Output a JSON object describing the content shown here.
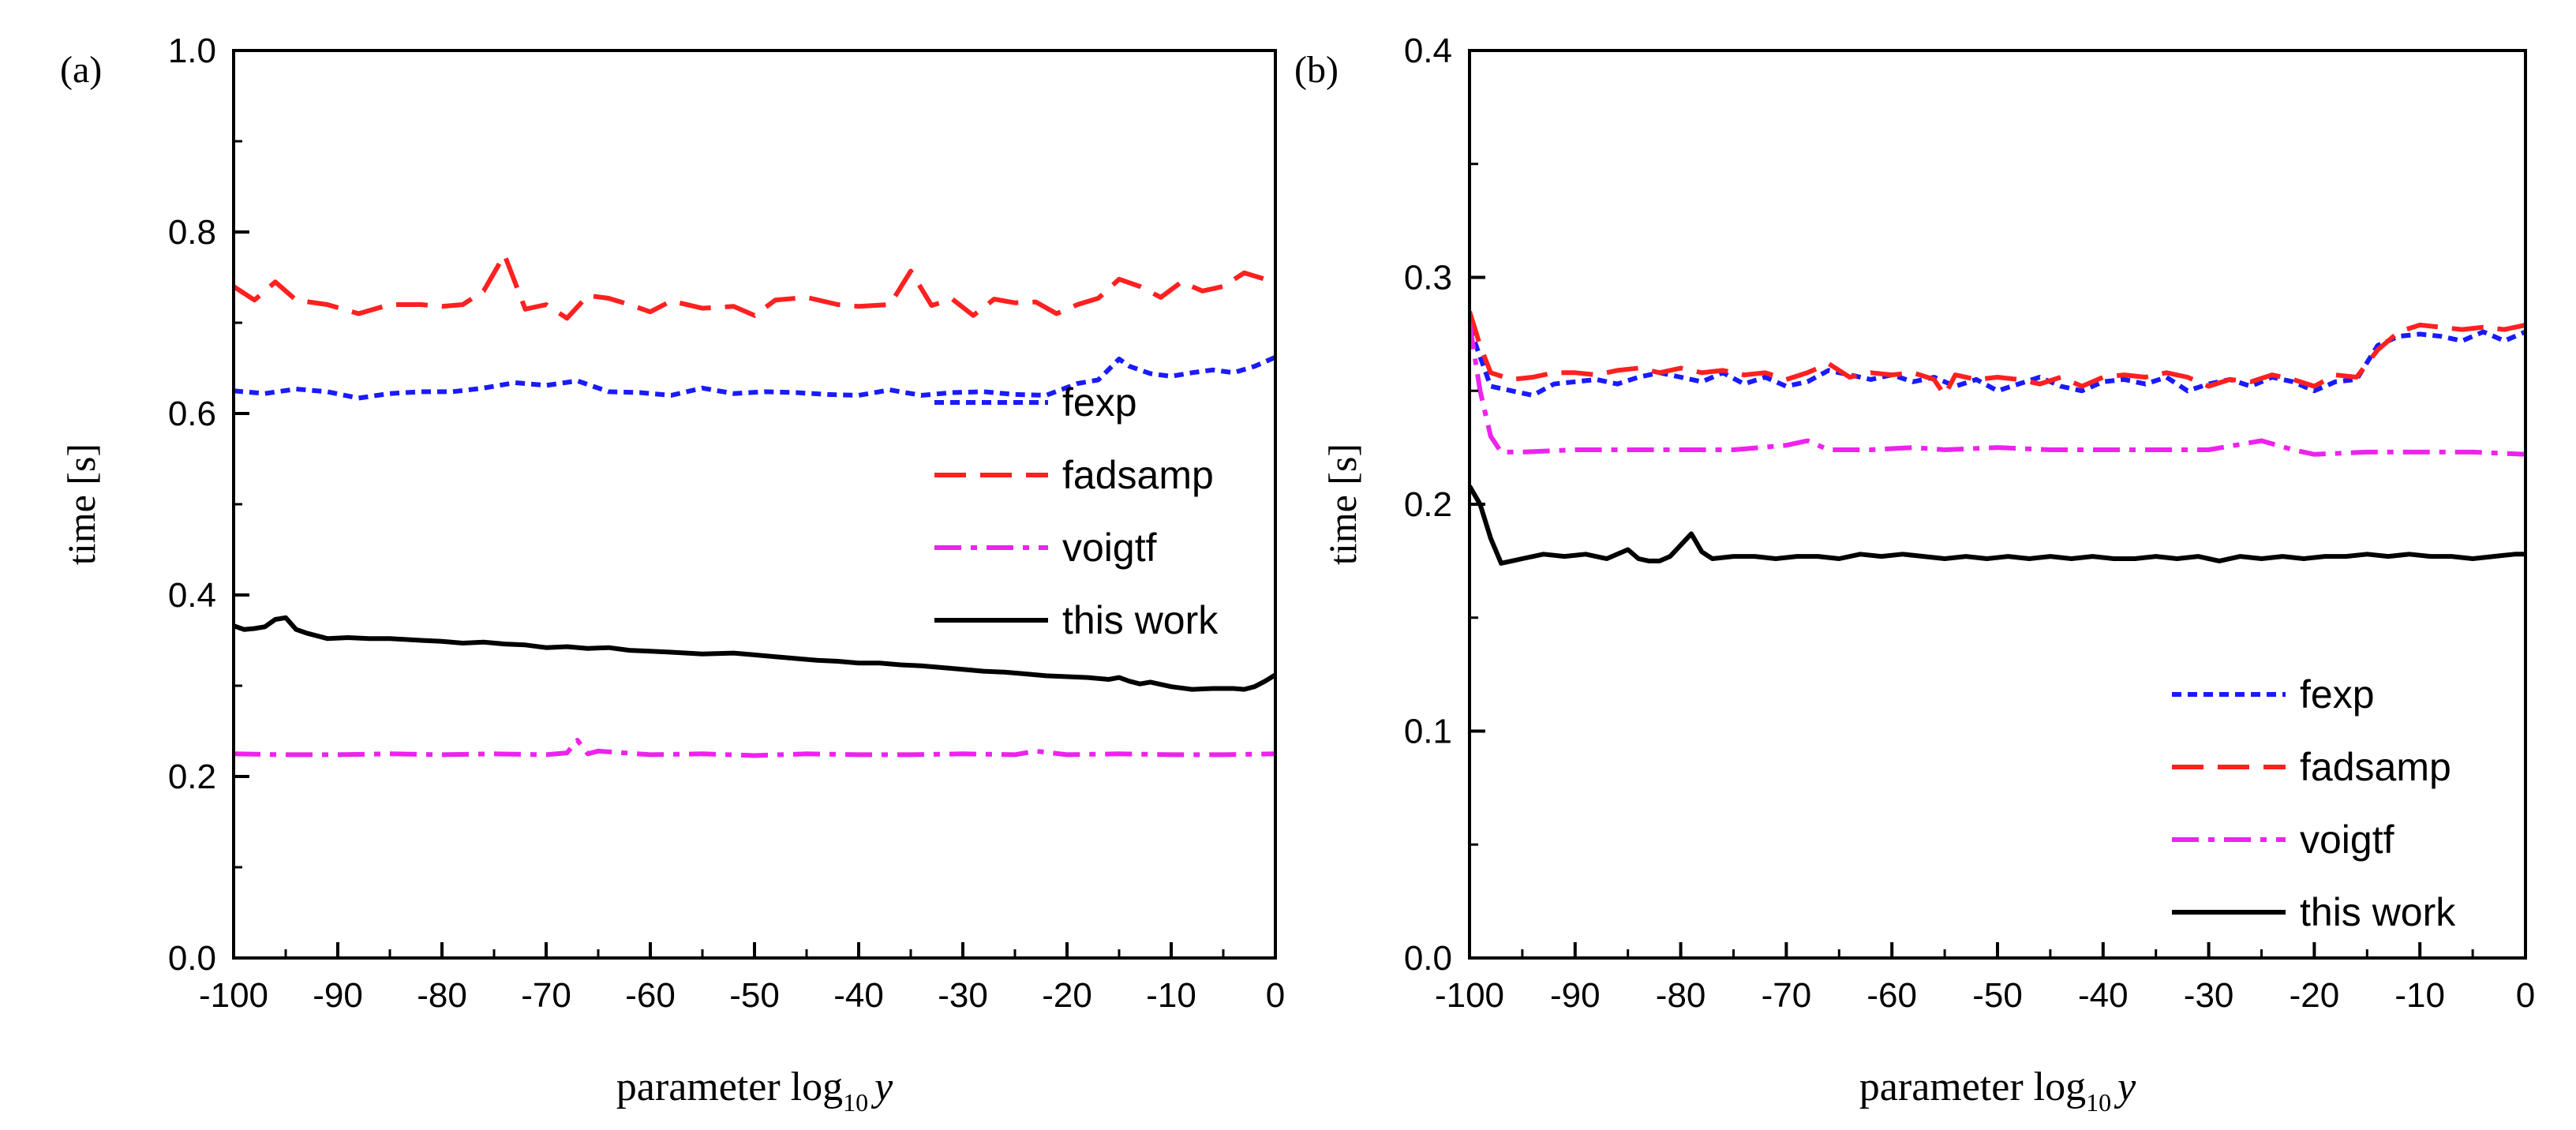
{
  "chart_data": [
    {
      "type": "line",
      "panel_label": "(a)",
      "ylabel": "time [s]",
      "xlabel": {
        "main": "parameter log",
        "sub": "10",
        "var": "y"
      },
      "xlim": [
        -100,
        0
      ],
      "ylim": [
        0,
        1.0
      ],
      "xticks": [
        -100,
        -90,
        -80,
        -70,
        -60,
        -50,
        -40,
        -30,
        -20,
        -10,
        0
      ],
      "xtick_labels": [
        "-100",
        "-90",
        "-80",
        "-70",
        "-60",
        "-50",
        "-40",
        "-30",
        "-20",
        "-10",
        "0"
      ],
      "yticks": [
        0,
        0.2,
        0.4,
        0.6,
        0.8,
        1.0
      ],
      "ytick_labels": [
        "0.0",
        "0.2",
        "0.4",
        "0.6",
        "0.8",
        "1.0"
      ],
      "legend_position": "right-middle",
      "series": [
        {
          "name": "fexp",
          "color": "#1a1aff",
          "dash": "dotted",
          "x": [
            -100,
            -97,
            -94,
            -91,
            -88,
            -85,
            -82,
            -79,
            -76,
            -73,
            -70,
            -67,
            -64,
            -61,
            -58,
            -55,
            -52,
            -49,
            -46,
            -43,
            -40,
            -37,
            -34,
            -31,
            -28,
            -25,
            -22,
            -19,
            -17,
            -15,
            -14,
            -12,
            -10,
            -8,
            -6,
            -4,
            -2,
            0
          ],
          "y": [
            0.625,
            0.622,
            0.627,
            0.624,
            0.617,
            0.622,
            0.624,
            0.624,
            0.628,
            0.634,
            0.631,
            0.636,
            0.624,
            0.623,
            0.62,
            0.628,
            0.622,
            0.624,
            0.623,
            0.621,
            0.62,
            0.626,
            0.62,
            0.623,
            0.624,
            0.621,
            0.62,
            0.633,
            0.637,
            0.66,
            0.652,
            0.644,
            0.641,
            0.645,
            0.648,
            0.645,
            0.652,
            0.662
          ]
        },
        {
          "name": "fadsamp",
          "color": "#ff2020",
          "dash": "dashed",
          "x": [
            -100,
            -98,
            -96,
            -94,
            -91,
            -88,
            -85,
            -82,
            -80,
            -78,
            -76,
            -74,
            -72,
            -70,
            -68,
            -66,
            -64,
            -62,
            -60,
            -58,
            -55,
            -52,
            -50,
            -48,
            -45,
            -42,
            -40,
            -37,
            -35,
            -33,
            -31,
            -29,
            -27,
            -25,
            -23,
            -21,
            -19,
            -17,
            -15,
            -13,
            -11,
            -9,
            -7,
            -5,
            -3,
            -1,
            0
          ],
          "y": [
            0.74,
            0.725,
            0.745,
            0.725,
            0.72,
            0.71,
            0.72,
            0.72,
            0.718,
            0.72,
            0.735,
            0.775,
            0.715,
            0.72,
            0.705,
            0.73,
            0.727,
            0.72,
            0.712,
            0.724,
            0.716,
            0.718,
            0.708,
            0.725,
            0.728,
            0.72,
            0.718,
            0.72,
            0.757,
            0.719,
            0.726,
            0.708,
            0.726,
            0.722,
            0.723,
            0.71,
            0.72,
            0.727,
            0.748,
            0.74,
            0.728,
            0.745,
            0.735,
            0.74,
            0.755,
            0.748,
            0.745
          ]
        },
        {
          "name": "voigtf",
          "color": "#ee22ee",
          "dash": "dashdot",
          "x": [
            -100,
            -95,
            -90,
            -85,
            -80,
            -75,
            -70,
            -68,
            -67,
            -66,
            -65,
            -60,
            -55,
            -50,
            -45,
            -40,
            -35,
            -30,
            -25,
            -23,
            -20,
            -15,
            -10,
            -5,
            0
          ],
          "y": [
            0.225,
            0.224,
            0.224,
            0.225,
            0.224,
            0.225,
            0.224,
            0.226,
            0.24,
            0.225,
            0.228,
            0.224,
            0.225,
            0.223,
            0.225,
            0.224,
            0.224,
            0.225,
            0.224,
            0.228,
            0.224,
            0.225,
            0.224,
            0.224,
            0.225
          ]
        },
        {
          "name": "this work",
          "color": "#000000",
          "dash": "solid",
          "x": [
            -100,
            -99,
            -98,
            -97,
            -96,
            -95,
            -94,
            -93,
            -91,
            -89,
            -87,
            -85,
            -82,
            -80,
            -78,
            -76,
            -74,
            -72,
            -70,
            -68,
            -66,
            -64,
            -62,
            -60,
            -58,
            -55,
            -52,
            -50,
            -48,
            -46,
            -44,
            -42,
            -40,
            -38,
            -36,
            -34,
            -32,
            -30,
            -28,
            -26,
            -24,
            -22,
            -20,
            -18,
            -16,
            -15,
            -14,
            -13,
            -12,
            -10,
            -8,
            -6,
            -4,
            -3,
            -2,
            -1,
            0
          ],
          "y": [
            0.366,
            0.362,
            0.363,
            0.365,
            0.373,
            0.375,
            0.362,
            0.358,
            0.352,
            0.353,
            0.352,
            0.352,
            0.35,
            0.349,
            0.347,
            0.348,
            0.346,
            0.345,
            0.342,
            0.343,
            0.341,
            0.342,
            0.339,
            0.338,
            0.337,
            0.335,
            0.336,
            0.334,
            0.332,
            0.33,
            0.328,
            0.327,
            0.325,
            0.325,
            0.323,
            0.322,
            0.32,
            0.318,
            0.316,
            0.315,
            0.313,
            0.311,
            0.31,
            0.309,
            0.307,
            0.309,
            0.305,
            0.302,
            0.304,
            0.299,
            0.296,
            0.297,
            0.297,
            0.296,
            0.299,
            0.305,
            0.312
          ]
        }
      ]
    },
    {
      "type": "line",
      "panel_label": "(b)",
      "ylabel": "time [s]",
      "xlabel": {
        "main": "parameter log",
        "sub": "10",
        "var": "y"
      },
      "xlim": [
        -100,
        0
      ],
      "ylim": [
        0,
        0.4
      ],
      "xticks": [
        -100,
        -90,
        -80,
        -70,
        -60,
        -50,
        -40,
        -30,
        -20,
        -10,
        0
      ],
      "xtick_labels": [
        "-100",
        "-90",
        "-80",
        "-70",
        "-60",
        "-50",
        "-40",
        "-30",
        "-20",
        "-10",
        "0"
      ],
      "yticks": [
        0,
        0.1,
        0.2,
        0.3,
        0.4
      ],
      "ytick_labels": [
        "0.0",
        "0.1",
        "0.2",
        "0.3",
        "0.4"
      ],
      "legend_position": "bottom-right",
      "series": [
        {
          "name": "fexp",
          "color": "#1a1aff",
          "dash": "dotted",
          "x": [
            -100,
            -99,
            -98,
            -96,
            -94,
            -92,
            -90,
            -88,
            -86,
            -84,
            -82,
            -80,
            -78,
            -76,
            -74,
            -72,
            -70,
            -68,
            -66,
            -64,
            -62,
            -60,
            -58,
            -56,
            -54,
            -52,
            -50,
            -48,
            -46,
            -44,
            -42,
            -40,
            -38,
            -36,
            -34,
            -32,
            -30,
            -28,
            -26,
            -24,
            -22,
            -20,
            -18,
            -16,
            -14,
            -12,
            -10,
            -8,
            -6,
            -4,
            -2,
            0
          ],
          "y": [
            0.278,
            0.265,
            0.252,
            0.25,
            0.248,
            0.253,
            0.254,
            0.255,
            0.253,
            0.256,
            0.258,
            0.256,
            0.254,
            0.258,
            0.253,
            0.256,
            0.252,
            0.254,
            0.259,
            0.257,
            0.255,
            0.257,
            0.254,
            0.256,
            0.252,
            0.255,
            0.25,
            0.253,
            0.256,
            0.252,
            0.25,
            0.254,
            0.255,
            0.253,
            0.256,
            0.25,
            0.253,
            0.255,
            0.252,
            0.256,
            0.254,
            0.25,
            0.254,
            0.255,
            0.27,
            0.274,
            0.275,
            0.274,
            0.272,
            0.276,
            0.272,
            0.276
          ]
        },
        {
          "name": "fadsamp",
          "color": "#ff2020",
          "dash": "dashed",
          "x": [
            -100,
            -99,
            -98,
            -96,
            -94,
            -92,
            -90,
            -88,
            -86,
            -84,
            -82,
            -80,
            -78,
            -76,
            -74,
            -72,
            -70,
            -68,
            -66,
            -64,
            -62,
            -60,
            -58,
            -56,
            -55,
            -54,
            -52,
            -50,
            -48,
            -46,
            -44,
            -42,
            -40,
            -38,
            -36,
            -34,
            -32,
            -30,
            -28,
            -26,
            -24,
            -22,
            -20,
            -18,
            -16,
            -14,
            -12,
            -10,
            -8,
            -6,
            -4,
            -2,
            0
          ],
          "y": [
            0.285,
            0.27,
            0.258,
            0.255,
            0.256,
            0.258,
            0.258,
            0.257,
            0.259,
            0.26,
            0.258,
            0.26,
            0.258,
            0.259,
            0.257,
            0.258,
            0.255,
            0.258,
            0.262,
            0.256,
            0.258,
            0.257,
            0.258,
            0.255,
            0.248,
            0.257,
            0.255,
            0.256,
            0.255,
            0.253,
            0.256,
            0.252,
            0.256,
            0.257,
            0.256,
            0.258,
            0.256,
            0.252,
            0.255,
            0.254,
            0.257,
            0.255,
            0.252,
            0.257,
            0.256,
            0.268,
            0.276,
            0.279,
            0.278,
            0.277,
            0.278,
            0.277,
            0.279
          ]
        },
        {
          "name": "voigtf",
          "color": "#ee22ee",
          "dash": "dashdot",
          "x": [
            -100,
            -99,
            -98,
            -97,
            -95,
            -90,
            -85,
            -80,
            -75,
            -70,
            -68,
            -66,
            -62,
            -58,
            -55,
            -50,
            -45,
            -40,
            -35,
            -30,
            -25,
            -22,
            -20,
            -15,
            -10,
            -5,
            0
          ],
          "y": [
            0.28,
            0.25,
            0.23,
            0.223,
            0.223,
            0.224,
            0.224,
            0.224,
            0.224,
            0.226,
            0.228,
            0.224,
            0.224,
            0.225,
            0.224,
            0.225,
            0.224,
            0.224,
            0.224,
            0.224,
            0.228,
            0.224,
            0.222,
            0.223,
            0.223,
            0.223,
            0.222
          ]
        },
        {
          "name": "this work",
          "color": "#000000",
          "dash": "solid",
          "x": [
            -100,
            -99,
            -98,
            -97,
            -96,
            -95,
            -93,
            -91,
            -89,
            -87,
            -85,
            -84,
            -83,
            -82,
            -81,
            -80,
            -79,
            -78,
            -77,
            -75,
            -73,
            -71,
            -69,
            -67,
            -65,
            -63,
            -61,
            -59,
            -57,
            -55,
            -53,
            -51,
            -49,
            -47,
            -45,
            -43,
            -41,
            -39,
            -37,
            -35,
            -33,
            -31,
            -29,
            -27,
            -25,
            -23,
            -21,
            -19,
            -17,
            -15,
            -13,
            -11,
            -9,
            -7,
            -5,
            -3,
            -1,
            0
          ],
          "y": [
            0.208,
            0.2,
            0.185,
            0.174,
            0.175,
            0.176,
            0.178,
            0.177,
            0.178,
            0.176,
            0.18,
            0.176,
            0.175,
            0.175,
            0.177,
            0.182,
            0.187,
            0.179,
            0.176,
            0.177,
            0.177,
            0.176,
            0.177,
            0.177,
            0.176,
            0.178,
            0.177,
            0.178,
            0.177,
            0.176,
            0.177,
            0.176,
            0.177,
            0.176,
            0.177,
            0.176,
            0.177,
            0.176,
            0.176,
            0.177,
            0.176,
            0.177,
            0.175,
            0.177,
            0.176,
            0.177,
            0.176,
            0.177,
            0.177,
            0.178,
            0.177,
            0.178,
            0.177,
            0.177,
            0.176,
            0.177,
            0.178,
            0.178
          ]
        }
      ]
    }
  ]
}
